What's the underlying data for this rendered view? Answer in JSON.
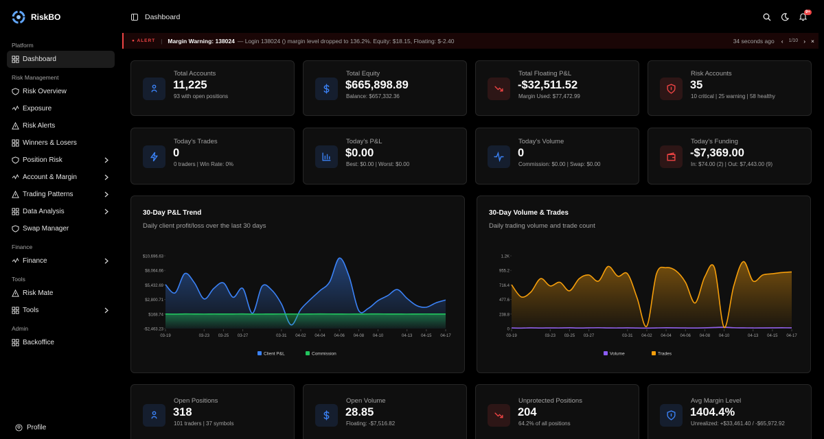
{
  "sidebar": {
    "brand": "RiskBO",
    "sections": [
      {
        "title": "Platform",
        "items": [
          {
            "label": "Dashboard",
            "active": true
          }
        ]
      },
      {
        "title": "Risk Management",
        "items": [
          {
            "label": "Risk Overview"
          },
          {
            "label": "Exposure"
          },
          {
            "label": "Risk Alerts"
          },
          {
            "label": "Winners & Losers"
          },
          {
            "label": "Position Risk",
            "submenu": true
          },
          {
            "label": "Account & Margin",
            "submenu": true
          },
          {
            "label": "Trading Patterns",
            "submenu": true
          },
          {
            "label": "Data Analysis",
            "submenu": true
          },
          {
            "label": "Swap Manager"
          }
        ]
      },
      {
        "title": "Finance",
        "items": [
          {
            "label": "Finance",
            "submenu": true
          }
        ]
      },
      {
        "title": "Tools",
        "items": [
          {
            "label": "Risk Mate"
          },
          {
            "label": "Tools",
            "submenu": true
          }
        ]
      },
      {
        "title": "Admin",
        "items": [
          {
            "label": "Backoffice"
          }
        ]
      }
    ],
    "profile": "Profile"
  },
  "header": {
    "title": "Dashboard",
    "badge": "9+"
  },
  "alert": {
    "tag": "ALERT",
    "title": "Margin Warning: 138024",
    "message": "— Login 138024 () margin level dropped to 136.2%. Equity: $18.15, Floating: $-2.40",
    "time": "34 seconds ago",
    "pager": "1/10"
  },
  "cards": [
    {
      "label": "Total Accounts",
      "value": "11,225",
      "sub": "93 with open positions",
      "accent": "#3b82f6"
    },
    {
      "label": "Total Equity",
      "value": "$665,898.89",
      "sub": "Balance: $657,332.36",
      "accent": "#3b82f6"
    },
    {
      "label": "Total Floating P&L",
      "value": "-$32,511.52",
      "sub": "Margin Used: $77,472.99",
      "accent": "#ef4444"
    },
    {
      "label": "Risk Accounts",
      "value": "35",
      "sub": "10 critical | 25 warning | 58 healthy",
      "accent": "#ef4444"
    },
    {
      "label": "Today's Trades",
      "value": "0",
      "sub": "0 traders | Win Rate: 0%",
      "accent": "#3b82f6"
    },
    {
      "label": "Today's P&L",
      "value": "$0.00",
      "sub": "Best: $0.00 | Worst: $0.00",
      "accent": "#3b82f6"
    },
    {
      "label": "Today's Volume",
      "value": "0",
      "sub": "Commission: $0.00 | Swap: $0.00",
      "accent": "#3b82f6"
    },
    {
      "label": "Today's Funding",
      "value": "-$7,369.00",
      "sub": "In: $74.00 (2) | Out: $7,443.00 (9)",
      "accent": "#ef4444"
    },
    {
      "label": "Open Positions",
      "value": "318",
      "sub": "101 traders | 37 symbols",
      "accent": "#3b82f6"
    },
    {
      "label": "Open Volume",
      "value": "28.85",
      "sub": "Floating: -$7,516.82",
      "accent": "#3b82f6"
    },
    {
      "label": "Unprotected Positions",
      "value": "204",
      "sub": "64.2% of all positions",
      "accent": "#ef4444"
    },
    {
      "label": "Avg Margin Level",
      "value": "1404.4%",
      "sub": "Unrealized: +$33,461.40 / -$65,972.92",
      "accent": "#3b82f6"
    }
  ],
  "chart_data": [
    {
      "type": "area",
      "title": "30-Day P&L Trend",
      "subtitle": "Daily client profit/loss over the last 30 days",
      "categories": [
        "03-19",
        null,
        null,
        null,
        "03-23",
        null,
        "03-25",
        null,
        "03-27",
        null,
        null,
        null,
        "03-31",
        null,
        "04-02",
        null,
        "04-04",
        null,
        "04-06",
        null,
        "04-08",
        null,
        "04-10",
        null,
        null,
        "04-13",
        null,
        "04-15",
        null,
        "04-17"
      ],
      "series": [
        {
          "name": "Client P&L",
          "color": "#3b82f6",
          "values": [
            5500,
            4000,
            7500,
            5800,
            2900,
            4800,
            5800,
            3200,
            4800,
            300,
            5200,
            4500,
            2000,
            -1800,
            1000,
            2800,
            4400,
            6000,
            10300,
            7000,
            800,
            1200,
            2600,
            3500,
            4600,
            3000,
            1700,
            1400,
            2200,
            2700
          ]
        },
        {
          "name": "Commission",
          "color": "#22c55e",
          "values": [
            168,
            150,
            180,
            170,
            160,
            175,
            165,
            170,
            180,
            150,
            160,
            170,
            175,
            165,
            160,
            170,
            180,
            175,
            165,
            160,
            170,
            175,
            180,
            170,
            165,
            160,
            170,
            175,
            168,
            170
          ]
        }
      ],
      "ylim": [
        -2463.23,
        10696.63
      ],
      "yticks": [
        {
          "value": -2463.23,
          "label": "-$2,463.23"
        },
        {
          "value": 168.74,
          "label": "$168.74"
        },
        {
          "value": 2800.71,
          "label": "$2,800.71"
        },
        {
          "value": 5432.69,
          "label": "$5,432.69"
        },
        {
          "value": 8064.66,
          "label": "$8,064.66"
        },
        {
          "value": 10696.63,
          "label": "$10,696.63"
        }
      ],
      "grid": false,
      "legend": "bottom"
    },
    {
      "type": "area",
      "title": "30-Day Volume & Trades",
      "subtitle": "Daily trading volume and trade count",
      "categories": [
        "03-19",
        null,
        null,
        null,
        "03-23",
        null,
        "03-25",
        null,
        "03-27",
        null,
        null,
        null,
        "03-31",
        null,
        "04-02",
        null,
        "04-04",
        null,
        "04-06",
        null,
        "04-08",
        null,
        "04-10",
        null,
        null,
        "04-13",
        null,
        "04-15",
        null,
        "04-17"
      ],
      "series": [
        {
          "name": "Volume",
          "color": "#8b5cf6",
          "values": [
            10,
            8,
            12,
            9,
            11,
            10,
            13,
            9,
            12,
            14,
            11,
            10,
            12,
            9,
            8,
            11,
            13,
            12,
            10,
            9,
            12,
            18,
            22,
            14,
            12,
            10,
            11,
            12,
            13,
            12
          ]
        },
        {
          "name": "Trades",
          "color": "#f59e0b",
          "values": [
            720,
            520,
            600,
            820,
            700,
            760,
            620,
            820,
            880,
            780,
            1020,
            860,
            900,
            500,
            40,
            900,
            1000,
            950,
            760,
            420,
            850,
            1000,
            20,
            700,
            1100,
            780,
            880,
            900,
            920,
            930
          ]
        }
      ],
      "ylim": [
        0,
        1194
      ],
      "yticks": [
        0,
        238.8,
        477.6,
        716.4,
        955.2,
        {
          "value": 1194,
          "label": "1.2K"
        }
      ],
      "grid": false,
      "legend": "bottom"
    }
  ]
}
